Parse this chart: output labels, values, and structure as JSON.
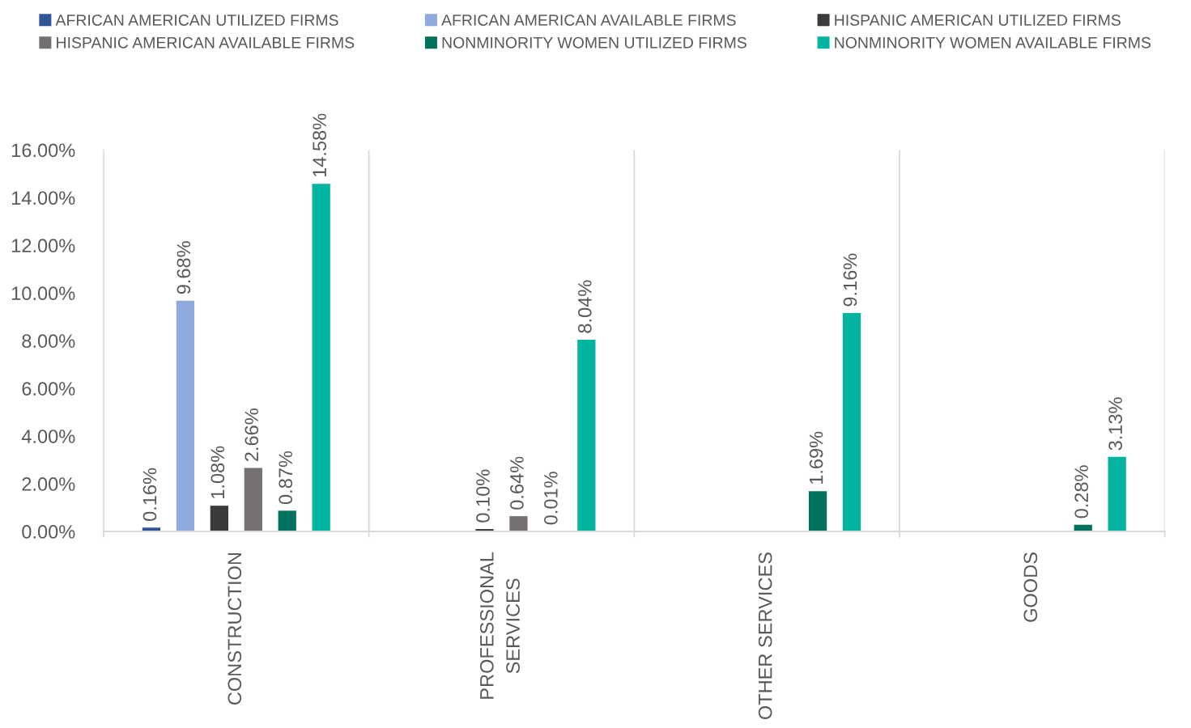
{
  "chart_data": {
    "type": "bar",
    "categories": [
      "CONSTRUCTION",
      "PROFESSIONAL\nSERVICES",
      "OTHER SERVICES",
      "GOODS"
    ],
    "series": [
      {
        "name": "AFRICAN AMERICAN UTILIZED FIRMS",
        "color": "#2f5597",
        "values": [
          0.16,
          null,
          null,
          null
        ],
        "value_labels": [
          "0.16%",
          null,
          null,
          null
        ]
      },
      {
        "name": "AFRICAN AMERICAN AVAILABLE FIRMS",
        "color": "#8faadc",
        "values": [
          9.68,
          null,
          null,
          null
        ],
        "value_labels": [
          "9.68%",
          null,
          null,
          null
        ]
      },
      {
        "name": "HISPANIC AMERICAN UTILIZED FIRMS",
        "color": "#3b3b3b",
        "values": [
          1.08,
          0.1,
          null,
          null
        ],
        "value_labels": [
          "1.08%",
          "0.10%",
          null,
          null
        ]
      },
      {
        "name": "HISPANIC AMERICAN AVAILABLE FIRMS",
        "color": "#767171",
        "values": [
          2.66,
          0.64,
          null,
          null
        ],
        "value_labels": [
          "2.66%",
          "0.64%",
          null,
          null
        ]
      },
      {
        "name": "NONMINORITY WOMEN UTILIZED FIRMS",
        "color": "#00725e",
        "values": [
          0.87,
          0.01,
          1.69,
          0.28
        ],
        "value_labels": [
          "0.87%",
          "0.01%",
          "1.69%",
          "0.28%"
        ]
      },
      {
        "name": "NONMINORITY WOMEN AVAILABLE FIRMS",
        "color": "#00b4a0",
        "values": [
          14.58,
          8.04,
          9.16,
          3.13
        ],
        "value_labels": [
          "14.58%",
          "8.04%",
          "9.16%",
          "3.13%"
        ]
      }
    ],
    "ylim": [
      0,
      16
    ],
    "yticks": [
      {
        "value": 0,
        "label": "0.00%"
      },
      {
        "value": 2,
        "label": "2.00%"
      },
      {
        "value": 4,
        "label": "4.00%"
      },
      {
        "value": 6,
        "label": "6.00%"
      },
      {
        "value": 8,
        "label": "8.00%"
      },
      {
        "value": 10,
        "label": "10.00%"
      },
      {
        "value": 12,
        "label": "12.00%"
      },
      {
        "value": 14,
        "label": "14.00%"
      },
      {
        "value": 16,
        "label": "16.00%"
      }
    ],
    "grid": "x",
    "legend": "top"
  }
}
